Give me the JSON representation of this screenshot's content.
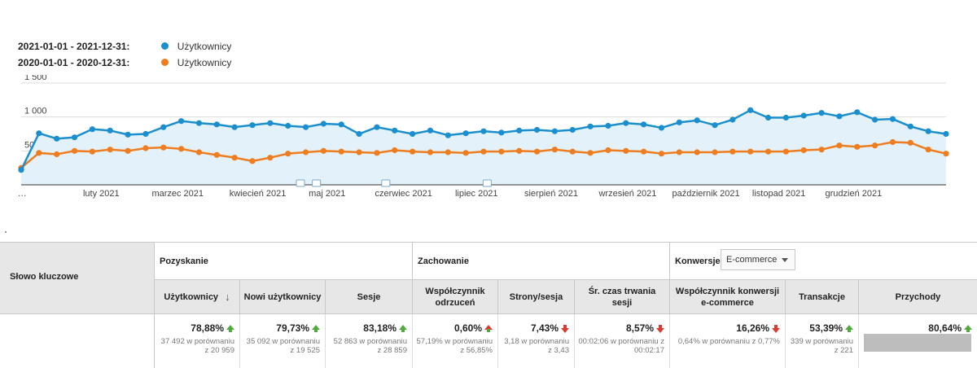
{
  "legend": {
    "current_range": "2021-01-01 - 2021-12-31:",
    "current_label": "Użytkownicy",
    "previous_range": "2020-01-01 - 2020-12-31:",
    "previous_label": "Użytkownicy"
  },
  "colors": {
    "current": "#1b8fcd",
    "previous": "#ee7d1f",
    "fill": "#e3f1fa",
    "grid": "#dcdcdc"
  },
  "chart_data": {
    "type": "line",
    "title": "",
    "y_ticks": [
      "1 500",
      "1 000",
      "500"
    ],
    "y_tick_values": [
      1500,
      1000,
      500
    ],
    "ylim": [
      0,
      1500
    ],
    "x_tick_labels": [
      "…",
      "luty 2021",
      "marzec 2021",
      "kwiecień 2021",
      "maj 2021",
      "czerwiec 2021",
      "lipiec 2021",
      "sierpień 2021",
      "wrzesień 2021",
      "październik 2021",
      "listopad 2021",
      "grudzień 2021"
    ],
    "x_tick_weeks": [
      -0.2,
      4.5,
      8.8,
      13.3,
      17.2,
      21.5,
      25.6,
      29.8,
      34.1,
      38.5,
      42.6,
      46.8
    ],
    "series": [
      {
        "name": "Użytkownicy 2021",
        "values": [
          220,
          760,
          680,
          700,
          820,
          800,
          740,
          750,
          850,
          940,
          910,
          890,
          850,
          880,
          910,
          870,
          850,
          900,
          890,
          750,
          850,
          800,
          750,
          800,
          730,
          760,
          790,
          770,
          800,
          810,
          790,
          810,
          860,
          870,
          910,
          890,
          840,
          920,
          950,
          880,
          960,
          1100,
          990,
          990,
          1020,
          1060,
          1010,
          1070,
          960,
          970,
          860,
          790,
          750
        ],
        "last_is_endpoint": true
      },
      {
        "name": "Użytkownicy 2020",
        "values": [
          250,
          470,
          450,
          500,
          490,
          520,
          500,
          540,
          550,
          530,
          480,
          440,
          400,
          350,
          400,
          460,
          480,
          500,
          490,
          480,
          470,
          510,
          490,
          480,
          480,
          470,
          490,
          490,
          500,
          490,
          520,
          490,
          470,
          510,
          500,
          490,
          460,
          480,
          480,
          480,
          490,
          490,
          490,
          490,
          510,
          520,
          580,
          560,
          580,
          630,
          620,
          520,
          460
        ]
      }
    ],
    "annotation_weeks": [
      15.7,
      16.6,
      20.5,
      26.2
    ]
  },
  "table": {
    "keyword_header": "Słowo kluczowe",
    "group_acquisition": "Pozyskanie",
    "group_behavior": "Zachowanie",
    "group_conversions": "Konwersje",
    "conversion_dropdown": "E-commerce",
    "columns": [
      {
        "label": "Użytkownicy",
        "pct": "78,88%",
        "trend": "up",
        "cmp": "37 492 w porównaniu z 20 959"
      },
      {
        "label": "Nowi użytkownicy",
        "pct": "79,73%",
        "trend": "up",
        "cmp": "35 092 w porównaniu z 19 525"
      },
      {
        "label": "Sesje",
        "pct": "83,18%",
        "trend": "up",
        "cmp": "52 863 w porównaniu z 28 859"
      },
      {
        "label": "Współczynnik odrzuceń",
        "pct": "0,60%",
        "trend": "up-red",
        "cmp": "57,19% w porównaniu z 56,85%"
      },
      {
        "label": "Strony/sesja",
        "pct": "7,43%",
        "trend": "down",
        "cmp": "3,18 w porównaniu z 3,43"
      },
      {
        "label": "Śr. czas trwania sesji",
        "pct": "8,57%",
        "trend": "down",
        "cmp": "00:02:06 w porównaniu z 00:02:17"
      },
      {
        "label": "Współczynnik konwersji e-commerce",
        "pct": "16,26%",
        "trend": "down",
        "cmp": "0,64% w porównaniu z 0,77%"
      },
      {
        "label": "Transakcje",
        "pct": "53,39%",
        "trend": "up",
        "cmp": "339 w porównaniu z 221"
      },
      {
        "label": "Przychody",
        "pct": "80,64%",
        "trend": "up",
        "cmp": ""
      }
    ]
  }
}
